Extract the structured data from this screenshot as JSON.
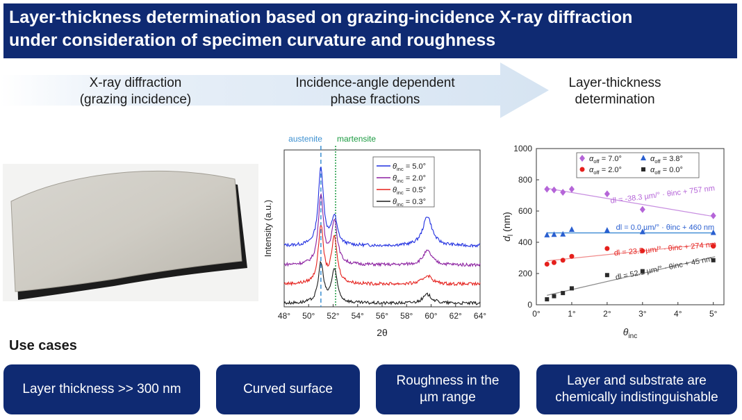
{
  "title": {
    "line1": "Layer-thickness determination based on grazing-incidence X-ray diffraction",
    "line2": "under consideration of specimen curvature and roughness"
  },
  "steps": [
    {
      "line1": "X-ray diffraction",
      "line2": "(grazing incidence)"
    },
    {
      "line1": "Incidence-angle dependent",
      "line2": "phase fractions"
    },
    {
      "line1": "Layer-thickness",
      "line2": "determination"
    }
  ],
  "use_cases_heading": "Use cases",
  "use_cases": [
    {
      "line1": "Layer thickness >> 300 nm",
      "line2": ""
    },
    {
      "line1": "Curved surface",
      "line2": ""
    },
    {
      "line1": "Roughness in the",
      "line2": "µm range"
    },
    {
      "line1": "Layer and substrate are",
      "line2": "chemically indistinguishable"
    }
  ],
  "colors": {
    "banner": "#0f2a72",
    "arrow": "#dce8f4",
    "series_5": "#1f2ee0",
    "series_2": "#8b1fa0",
    "series_05": "#e5201c",
    "series_03": "#1a1a1a",
    "austenite_line": "#3b8fd0",
    "martensite_line": "#1a9a40",
    "fit_7": "#c78de0",
    "fit_38": "#2a7fd0",
    "fit_2": "#f08a8a",
    "fit_0": "#8a8a8a"
  },
  "chart_data": [
    {
      "type": "line",
      "xlabel": "2θ",
      "ylabel": "Intensity (a.u.)",
      "xlim": [
        48,
        64
      ],
      "xticks": [
        "48°",
        "50°",
        "52°",
        "54°",
        "56°",
        "58°",
        "60°",
        "62°",
        "64°"
      ],
      "annotations": [
        "austenite",
        "martensite"
      ],
      "austenite_position": 51.0,
      "martensite_position": 52.2,
      "peak_positions": [
        51.0,
        52.1,
        59.7
      ],
      "legend": [
        "θinc = 5.0°",
        "θinc = 2.0°",
        "θinc = 0.5°",
        "θinc = 0.3°"
      ],
      "series": [
        {
          "name": "θinc = 5.0°",
          "baseline": 3.5,
          "peaks": [
            4.5,
            1.6,
            1.7
          ]
        },
        {
          "name": "θinc = 2.0°",
          "baseline": 2.4,
          "peaks": [
            4.0,
            2.5,
            0.8
          ]
        },
        {
          "name": "θinc = 0.5°",
          "baseline": 1.3,
          "peaks": [
            3.3,
            2.6,
            0.5
          ]
        },
        {
          "name": "θinc = 0.3°",
          "baseline": 0.2,
          "peaks": [
            2.3,
            1.9,
            0.5
          ]
        }
      ]
    },
    {
      "type": "scatter",
      "xlabel": "θinc",
      "ylabel": "dl (nm)",
      "xlim": [
        0,
        5.3
      ],
      "ylim": [
        0,
        1000
      ],
      "xticks": [
        "0°",
        "1°",
        "2°",
        "3°",
        "4°",
        "5°"
      ],
      "yticks": [
        "0",
        "200",
        "400",
        "600",
        "800",
        "1000"
      ],
      "legend": [
        "αoff = 7.0°",
        "αoff = 3.8°",
        "αoff = 2.0°",
        "αoff = 0.0°"
      ],
      "series": [
        {
          "name": "αoff = 7.0°",
          "marker": "diamond",
          "x": [
            0.3,
            0.5,
            0.75,
            1,
            2,
            3,
            5
          ],
          "y": [
            740,
            735,
            720,
            740,
            710,
            610,
            570
          ],
          "fit_label": "dl = -38.3 µm/° · θinc + 757 nm",
          "slope": -38.3,
          "intercept": 757
        },
        {
          "name": "αoff = 3.8°",
          "marker": "triangle",
          "x": [
            0.3,
            0.5,
            0.75,
            1,
            2,
            3,
            5
          ],
          "y": [
            445,
            448,
            450,
            480,
            475,
            465,
            460
          ],
          "fit_label": "dl = 0.0 µm/° · θinc + 460 nm",
          "slope": 0.0,
          "intercept": 460
        },
        {
          "name": "αoff = 2.0°",
          "marker": "circle",
          "x": [
            0.3,
            0.5,
            0.75,
            1,
            2,
            3,
            5
          ],
          "y": [
            260,
            270,
            285,
            310,
            360,
            345,
            375
          ],
          "fit_label": "dl = 23.5 µm/° · θinc + 274 nm",
          "slope": 23.5,
          "intercept": 274
        },
        {
          "name": "αoff = 0.0°",
          "marker": "square",
          "x": [
            0.3,
            0.5,
            0.75,
            1,
            2,
            3,
            5
          ],
          "y": [
            35,
            55,
            75,
            105,
            190,
            215,
            285
          ],
          "fit_label": "dl = 52.1 µm/° · θinc + 45 nm",
          "slope": 52.1,
          "intercept": 45
        }
      ]
    }
  ]
}
